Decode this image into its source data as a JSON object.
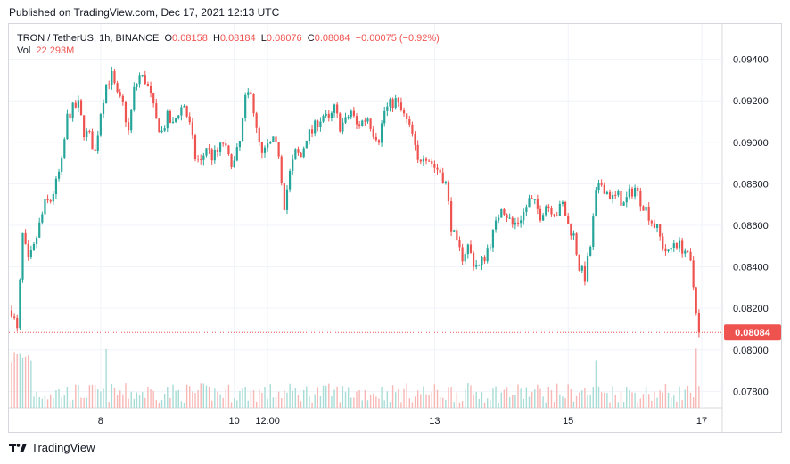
{
  "header": {
    "published": "Published on TradingView.com, Dec 17, 2021 12:13 UTC"
  },
  "legend": {
    "symbol": "TRON / TetherUS, 1h, BINANCE",
    "o_label": "O",
    "o": "0.08158",
    "h_label": "H",
    "h": "0.08184",
    "l_label": "L",
    "l": "0.08076",
    "c_label": "C",
    "c": "0.08084",
    "change": "−0.00075 (−0.92%)",
    "vol_label": "Vol",
    "vol": "22.293M"
  },
  "price_badge": "0.08084",
  "footer": {
    "brand": "TradingView"
  },
  "colors": {
    "up": "#26a69a",
    "down": "#ef5350",
    "grid": "#f0f3fa",
    "axis_text": "#131722"
  },
  "chart_data": {
    "type": "candlestick",
    "symbol": "TRON / TetherUS",
    "interval": "1h",
    "exchange": "BINANCE",
    "y_ticks": [
      "0.09400",
      "0.09200",
      "0.09000",
      "0.08800",
      "0.08600",
      "0.08400",
      "0.08200",
      "0.08000",
      "0.07800"
    ],
    "ylim": [
      0.0772,
      0.0957
    ],
    "x_ticks": [
      {
        "label": "8",
        "x": 32
      },
      {
        "label": "10",
        "x": 80
      },
      {
        "label": "12:00",
        "x": 92
      },
      {
        "label": "13",
        "x": 152
      },
      {
        "label": "15",
        "x": 200
      },
      {
        "label": "17",
        "x": 248
      }
    ],
    "last_price": 0.08084,
    "close_path": [
      [
        0,
        0.0819
      ],
      [
        2,
        0.0809
      ],
      [
        4,
        0.0855
      ],
      [
        6,
        0.0842
      ],
      [
        8,
        0.0849
      ],
      [
        10,
        0.086
      ],
      [
        12,
        0.087
      ],
      [
        14,
        0.0872
      ],
      [
        16,
        0.088
      ],
      [
        18,
        0.089
      ],
      [
        20,
        0.0912
      ],
      [
        22,
        0.0916
      ],
      [
        24,
        0.0918
      ],
      [
        26,
        0.0905
      ],
      [
        28,
        0.0903
      ],
      [
        30,
        0.0895
      ],
      [
        32,
        0.0915
      ],
      [
        34,
        0.0928
      ],
      [
        36,
        0.0932
      ],
      [
        38,
        0.0922
      ],
      [
        40,
        0.0918
      ],
      [
        42,
        0.0905
      ],
      [
        44,
        0.0925
      ],
      [
        46,
        0.0932
      ],
      [
        48,
        0.093
      ],
      [
        50,
        0.0922
      ],
      [
        52,
        0.091
      ],
      [
        54,
        0.0905
      ],
      [
        56,
        0.0912
      ],
      [
        58,
        0.0908
      ],
      [
        60,
        0.0915
      ],
      [
        62,
        0.0918
      ],
      [
        64,
        0.0908
      ],
      [
        66,
        0.0893
      ],
      [
        68,
        0.089
      ],
      [
        70,
        0.0898
      ],
      [
        72,
        0.0893
      ],
      [
        74,
        0.0895
      ],
      [
        76,
        0.09
      ],
      [
        78,
        0.0892
      ],
      [
        80,
        0.089
      ],
      [
        82,
        0.09
      ],
      [
        84,
        0.092
      ],
      [
        86,
        0.0926
      ],
      [
        88,
        0.0905
      ],
      [
        90,
        0.0893
      ],
      [
        92,
        0.0898
      ],
      [
        94,
        0.09
      ],
      [
        96,
        0.0895
      ],
      [
        98,
        0.087
      ],
      [
        100,
        0.0885
      ],
      [
        102,
        0.0895
      ],
      [
        104,
        0.0893
      ],
      [
        106,
        0.0903
      ],
      [
        108,
        0.0905
      ],
      [
        110,
        0.091
      ],
      [
        112,
        0.0913
      ],
      [
        114,
        0.091
      ],
      [
        116,
        0.0916
      ],
      [
        118,
        0.0908
      ],
      [
        120,
        0.091
      ],
      [
        122,
        0.0915
      ],
      [
        124,
        0.0908
      ],
      [
        126,
        0.091
      ],
      [
        128,
        0.0912
      ],
      [
        130,
        0.0905
      ],
      [
        132,
        0.0902
      ],
      [
        134,
        0.0915
      ],
      [
        136,
        0.0918
      ],
      [
        138,
        0.092
      ],
      [
        140,
        0.0915
      ],
      [
        142,
        0.091
      ],
      [
        144,
        0.0903
      ],
      [
        146,
        0.089
      ],
      [
        148,
        0.0895
      ],
      [
        150,
        0.0892
      ],
      [
        152,
        0.0888
      ],
      [
        154,
        0.0886
      ],
      [
        156,
        0.088
      ],
      [
        158,
        0.086
      ],
      [
        160,
        0.085
      ],
      [
        162,
        0.0845
      ],
      [
        164,
        0.085
      ],
      [
        166,
        0.0842
      ],
      [
        168,
        0.084
      ],
      [
        170,
        0.0845
      ],
      [
        172,
        0.0852
      ],
      [
        174,
        0.086
      ],
      [
        176,
        0.087
      ],
      [
        178,
        0.0865
      ],
      [
        180,
        0.086
      ],
      [
        182,
        0.0862
      ],
      [
        184,
        0.0866
      ],
      [
        186,
        0.0872
      ],
      [
        188,
        0.087
      ],
      [
        190,
        0.0865
      ],
      [
        192,
        0.087
      ],
      [
        194,
        0.0868
      ],
      [
        196,
        0.0866
      ],
      [
        198,
        0.087
      ],
      [
        200,
        0.086
      ],
      [
        202,
        0.0855
      ],
      [
        204,
        0.084
      ],
      [
        206,
        0.0835
      ],
      [
        208,
        0.085
      ],
      [
        210,
        0.0875
      ],
      [
        212,
        0.088
      ],
      [
        214,
        0.0876
      ],
      [
        216,
        0.0873
      ],
      [
        218,
        0.0874
      ],
      [
        220,
        0.087
      ],
      [
        222,
        0.0875
      ],
      [
        224,
        0.0878
      ],
      [
        226,
        0.0872
      ],
      [
        228,
        0.0868
      ],
      [
        230,
        0.0862
      ],
      [
        232,
        0.0858
      ],
      [
        234,
        0.085
      ],
      [
        236,
        0.0846
      ],
      [
        238,
        0.0852
      ],
      [
        240,
        0.085
      ],
      [
        242,
        0.0848
      ],
      [
        244,
        0.0841
      ],
      [
        246,
        0.082
      ],
      [
        247,
        0.08084
      ]
    ]
  }
}
